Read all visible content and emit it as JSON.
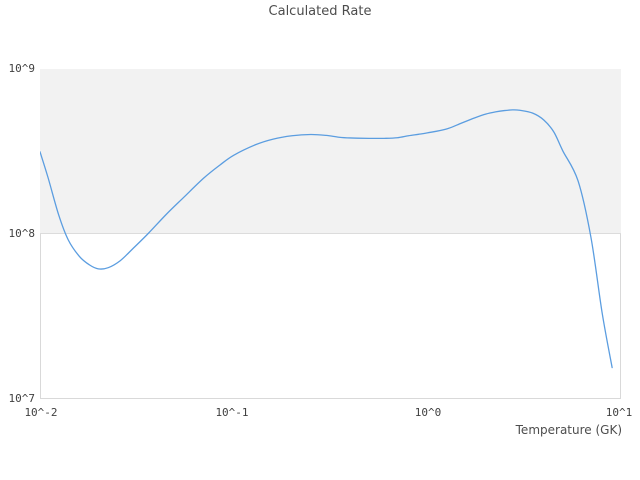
{
  "title": "Calculated Rate",
  "colors": {
    "line": "#5b9de0",
    "band": "#f2f2f2",
    "plot_border": "#d9d9d9",
    "gridline": "#dcdcdc",
    "text": "#4d4d4d",
    "tick_text": "#404040"
  },
  "chart_data": {
    "type": "line",
    "title": "Calculated Rate",
    "xlabel": "Temperature (GK)",
    "ylabel": "",
    "xscale": "log",
    "yscale": "log",
    "xlim": [
      0.01,
      10
    ],
    "ylim": [
      10000000.0,
      1000000000.0
    ],
    "grid": "horizontal shaded band between 1e8 and 1e9, no vertical gridlines",
    "legend": "none",
    "x_tick_labels": [
      "10^-2",
      "10^-1",
      "10^0",
      "10^1"
    ],
    "y_tick_labels_top_to_bottom": [
      "10^9",
      "10^8",
      "10^7"
    ],
    "series": [
      {
        "name": "calculated-rate",
        "x": [
          0.01,
          0.011,
          0.0125,
          0.014,
          0.016,
          0.018,
          0.02,
          0.0225,
          0.026,
          0.03,
          0.036,
          0.045,
          0.055,
          0.07,
          0.085,
          0.1,
          0.13,
          0.16,
          0.2,
          0.25,
          0.3,
          0.35,
          0.4,
          0.5,
          0.6,
          0.7,
          0.8,
          0.9,
          1.0,
          1.25,
          1.5,
          1.75,
          2.0,
          2.25,
          2.5,
          2.75,
          3.0,
          3.5,
          4.0,
          4.5,
          5.0,
          6.0,
          7.0,
          8.0,
          9.0
        ],
        "y": [
          315000000.0,
          220000000.0,
          130000000.0,
          92000000.0,
          73000000.0,
          65000000.0,
          61500000.0,
          62500000.0,
          69000000.0,
          81000000.0,
          100000000.0,
          132000000.0,
          166000000.0,
          218000000.0,
          262000000.0,
          300000000.0,
          348000000.0,
          376000000.0,
          394000000.0,
          401000000.0,
          396000000.0,
          386000000.0,
          382000000.0,
          380000000.0,
          380000000.0,
          383000000.0,
          394000000.0,
          402000000.0,
          410000000.0,
          432000000.0,
          470000000.0,
          505000000.0,
          533000000.0,
          550000000.0,
          560000000.0,
          565000000.0,
          562000000.0,
          540000000.0,
          490000000.0,
          415000000.0,
          320000000.0,
          210000000.0,
          95000000.0,
          33000000.0,
          15500000.0
        ]
      }
    ]
  }
}
